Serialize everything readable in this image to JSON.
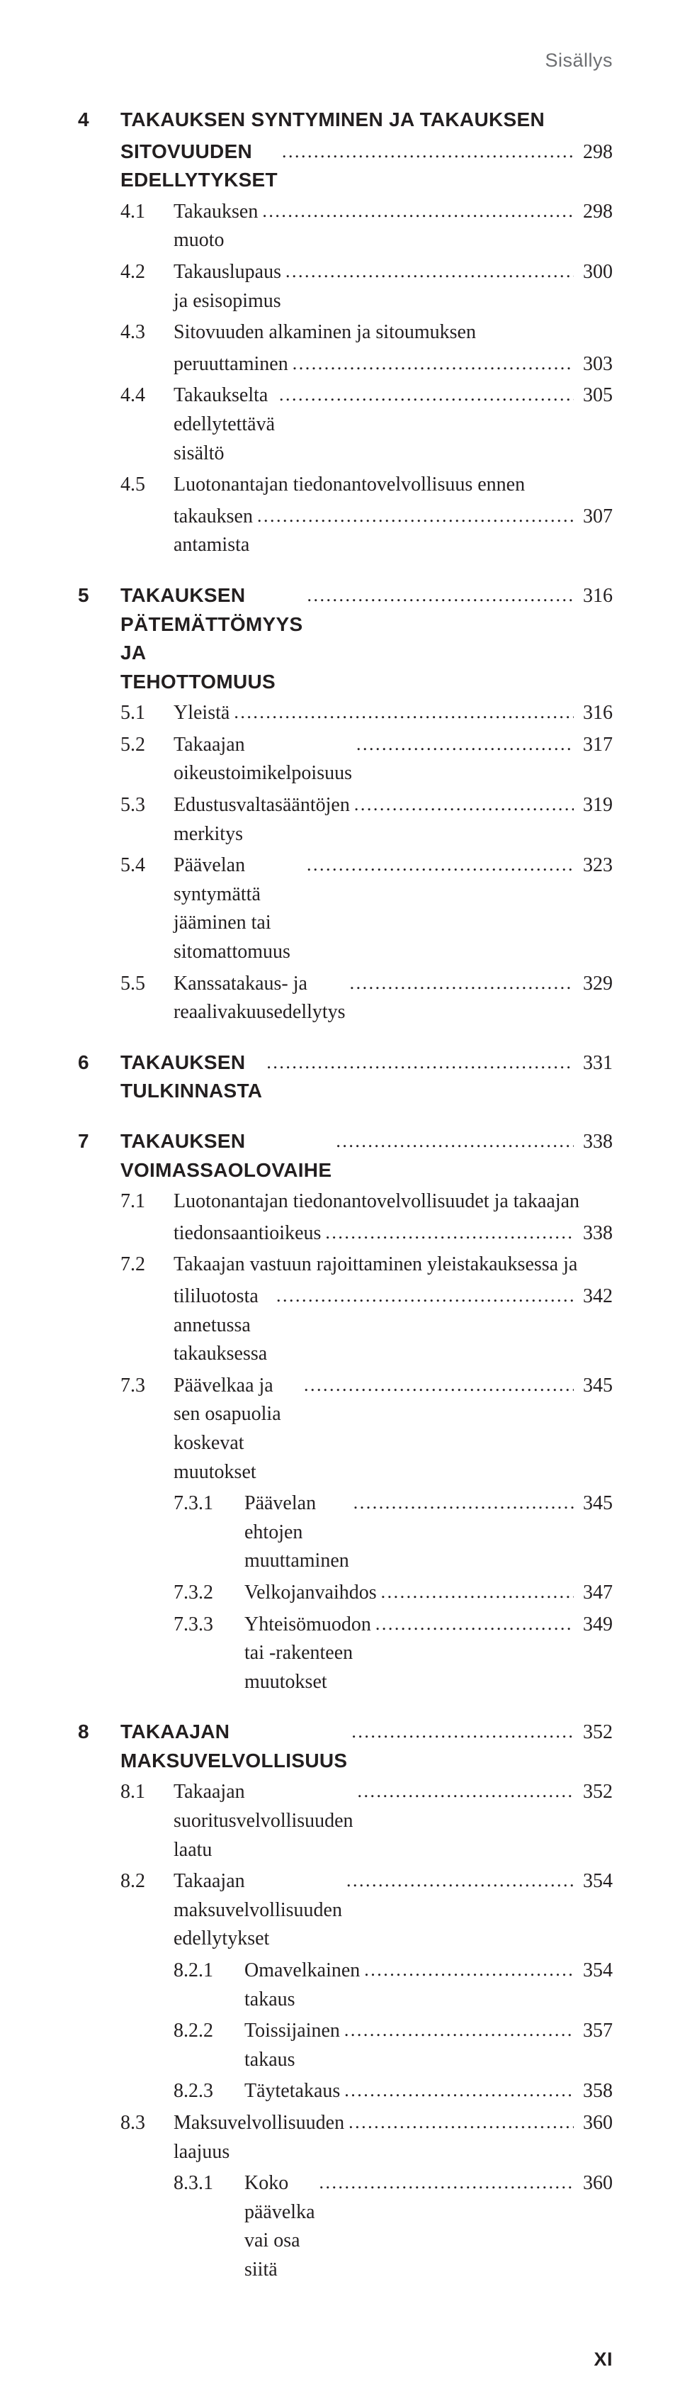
{
  "header": "Sisällys",
  "footer": "XI",
  "leaders": "............................................................................................................................",
  "chapters": [
    {
      "num": "4",
      "title": "TAKAUKSEN SYNTYMINEN JA TAKAUKSEN SITOVUUDEN EDELLYTYKSET",
      "title_line1": "TAKAUKSEN SYNTYMINEN JA TAKAUKSEN",
      "title_line2": "SITOVUUDEN EDELLYTYKSET",
      "page": "298",
      "sections": [
        {
          "num": "4.1",
          "label": "Takauksen muoto",
          "page": "298"
        },
        {
          "num": "4.2",
          "label": "Takauslupaus ja esisopimus",
          "page": "300"
        },
        {
          "num": "4.3",
          "label_line1": "Sitovuuden alkaminen ja sitoumuksen",
          "label_line2": "peruuttaminen",
          "page": "303",
          "multiline": true
        },
        {
          "num": "4.4",
          "label": "Takaukselta edellytettävä sisältö",
          "page": "305"
        },
        {
          "num": "4.5",
          "label_line1": "Luotonantajan tiedonantovelvollisuus ennen",
          "label_line2": "takauksen antamista",
          "page": "307",
          "multiline": true
        }
      ]
    },
    {
      "num": "5",
      "title": "TAKAUKSEN PÄTEMÄTTÖMYYS JA TEHOTTOMUUS",
      "page": "316",
      "sections": [
        {
          "num": "5.1",
          "label": "Yleistä",
          "page": "316"
        },
        {
          "num": "5.2",
          "label": "Takaajan oikeustoimikelpoisuus",
          "page": "317"
        },
        {
          "num": "5.3",
          "label": "Edustusvaltasääntöjen merkitys",
          "page": "319"
        },
        {
          "num": "5.4",
          "label": "Päävelan syntymättä jääminen tai sitomattomuus",
          "page": "323"
        },
        {
          "num": "5.5",
          "label": "Kanssatakaus- ja reaalivakuusedellytys",
          "page": "329"
        }
      ]
    },
    {
      "num": "6",
      "title": "TAKAUKSEN TULKINNASTA",
      "page": "331",
      "sections": []
    },
    {
      "num": "7",
      "title": "TAKAUKSEN VOIMASSAOLOVAIHE",
      "page": "338",
      "sections": [
        {
          "num": "7.1",
          "label_line1": "Luotonantajan tiedonantovelvollisuudet ja takaajan",
          "label_line2": "tiedonsaantioikeus",
          "page": "338",
          "multiline": true
        },
        {
          "num": "7.2",
          "label_line1": "Takaajan vastuun rajoittaminen yleistakauksessa ja",
          "label_line2": "tililuotosta annetussa takauksessa",
          "page": "342",
          "multiline": true
        },
        {
          "num": "7.3",
          "label": "Päävelkaa ja sen osapuolia koskevat muutokset",
          "page": "345",
          "subsections": [
            {
              "num": "7.3.1",
              "label": "Päävelan ehtojen muuttaminen",
              "page": "345"
            },
            {
              "num": "7.3.2",
              "label": "Velkojanvaihdos",
              "page": "347"
            },
            {
              "num": "7.3.3",
              "label": "Yhteisömuodon tai -rakenteen muutokset",
              "page": "349"
            }
          ]
        }
      ]
    },
    {
      "num": "8",
      "title": "TAKAAJAN MAKSUVELVOLLISUUS",
      "page": "352",
      "sections": [
        {
          "num": "8.1",
          "label": "Takaajan suoritusvelvollisuuden laatu",
          "page": "352"
        },
        {
          "num": "8.2",
          "label": "Takaajan maksuvelvollisuuden edellytykset",
          "page": "354",
          "subsections": [
            {
              "num": "8.2.1",
              "label": "Omavelkainen takaus",
              "page": "354"
            },
            {
              "num": "8.2.2",
              "label": "Toissijainen takaus",
              "page": "357"
            },
            {
              "num": "8.2.3",
              "label": "Täytetakaus",
              "page": "358"
            }
          ]
        },
        {
          "num": "8.3",
          "label": "Maksuvelvollisuuden laajuus",
          "page": "360",
          "subsections": [
            {
              "num": "8.3.1",
              "label": "Koko päävelka vai osa siitä",
              "page": "360"
            }
          ]
        }
      ]
    }
  ]
}
